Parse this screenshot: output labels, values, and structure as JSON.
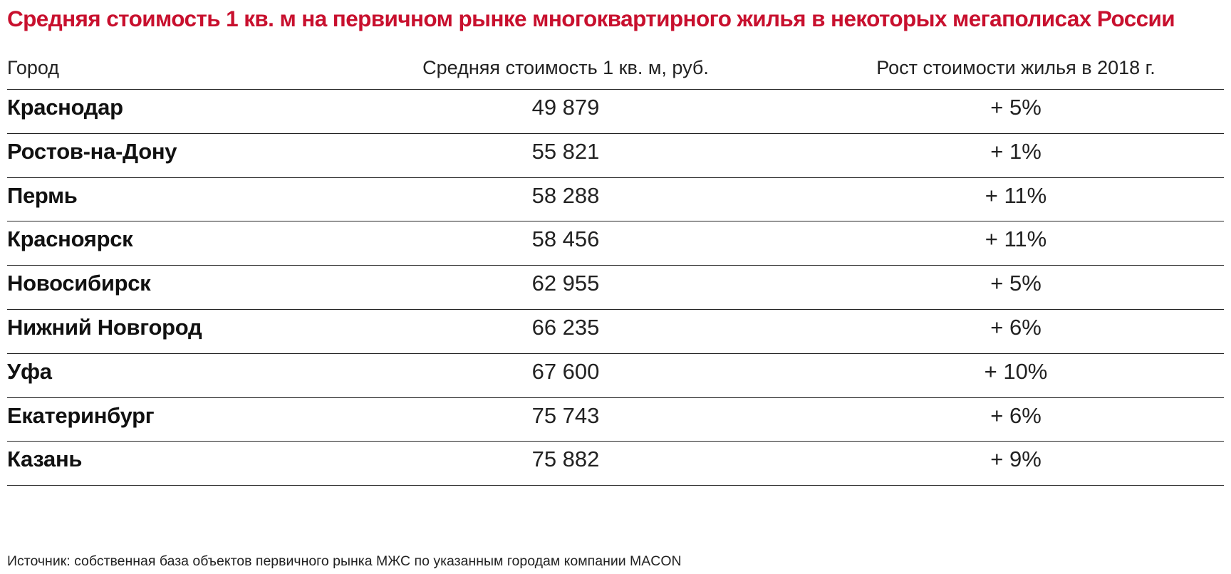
{
  "title": "Средняя стоимость 1 кв. м на первичном рынке многоквартирного жилья в некоторых мегаполисах России",
  "colors": {
    "title": "#c8102e",
    "rule": "#222222",
    "text": "#111111"
  },
  "chart_data": {
    "type": "table",
    "title": "Средняя стоимость 1 кв. м на первичном рынке многоквартирного жилья в некоторых мегаполисах России",
    "columns": [
      "Город",
      "Средняя стоимость 1 кв. м, руб.",
      "Рост стоимости жилья в 2018 г."
    ],
    "rows": [
      {
        "city": "Краснодар",
        "price": "49 879",
        "growth": "+ 5%"
      },
      {
        "city": "Ростов-на-Дону",
        "price": "55 821",
        "growth": "+ 1%"
      },
      {
        "city": "Пермь",
        "price": "58 288",
        "growth": "+ 11%"
      },
      {
        "city": "Красноярск",
        "price": "58 456",
        "growth": "+ 11%"
      },
      {
        "city": "Новосибирск",
        "price": "62 955",
        "growth": "+ 5%"
      },
      {
        "city": "Нижний Новгород",
        "price": "66 235",
        "growth": "+ 6%"
      },
      {
        "city": "Уфа",
        "price": "67 600",
        "growth": "+ 10%"
      },
      {
        "city": "Екатеринбург",
        "price": "75 743",
        "growth": "+ 6%"
      },
      {
        "city": "Казань",
        "price": "75 882",
        "growth": "+ 9%"
      }
    ],
    "values": [
      49879,
      55821,
      58288,
      58456,
      62955,
      66235,
      67600,
      75743,
      75882
    ],
    "growth_percent": [
      5,
      1,
      11,
      11,
      5,
      6,
      10,
      6,
      9
    ]
  },
  "source": "Источник: собственная база объектов первичного рынка МЖС по указанным городам компании MACON"
}
